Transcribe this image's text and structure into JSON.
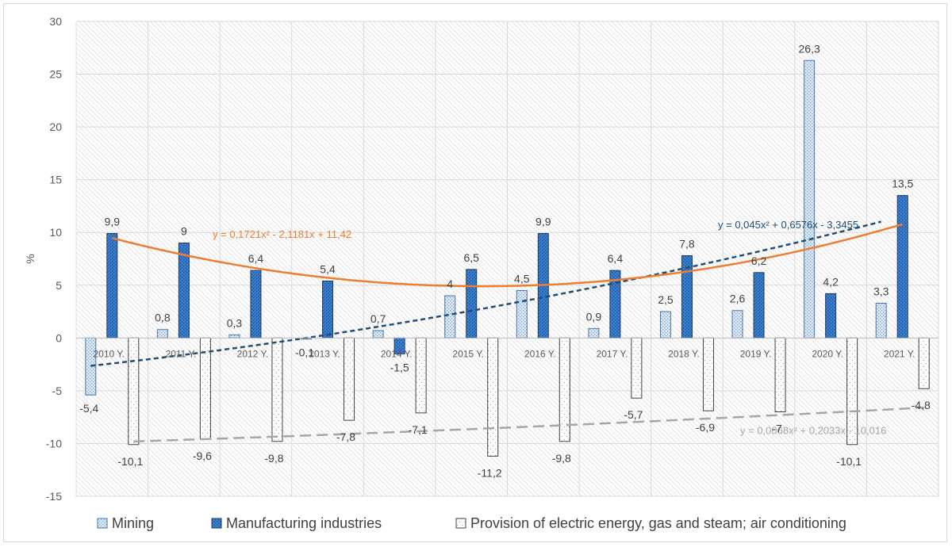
{
  "chart_data": {
    "type": "bar",
    "ylabel": "%",
    "ylim": [
      -15,
      30
    ],
    "yticks": [
      30,
      25,
      20,
      15,
      10,
      5,
      0,
      -5,
      -10,
      -15
    ],
    "grid": true,
    "legend_position": "bottom",
    "categories": [
      "2010 Y.",
      "2011 Y.",
      "2012 Y.",
      "2013 Y.",
      "2014 Y.",
      "2015 Y.",
      "2016 Y.",
      "2017 Y.",
      "2018 Y.",
      "2019 Y.",
      "2020 Y.",
      "2021 Y."
    ],
    "series": [
      {
        "name": "Mining",
        "values": [
          -5.4,
          0.8,
          0.3,
          -0.1,
          0.7,
          4,
          4.5,
          0.9,
          2.5,
          2.6,
          26.3,
          3.3
        ],
        "labels": [
          "-5,4",
          "0,8",
          "0,3",
          "-0,1",
          "0,7",
          "4",
          "4,5",
          "0,9",
          "2,5",
          "2,6",
          "26,3",
          "3,3"
        ],
        "color": "#cfe0f0"
      },
      {
        "name": "Manufacturing industries",
        "values": [
          9.9,
          9,
          6.4,
          5.4,
          -1.5,
          6.5,
          9.9,
          6.4,
          7.8,
          6.2,
          4.2,
          13.5
        ],
        "labels": [
          "9,9",
          "9",
          "6,4",
          "5,4",
          "-1,5",
          "6,5",
          "9,9",
          "6,4",
          "7,8",
          "6,2",
          "4,2",
          "13,5"
        ],
        "color": "#3d7ec9"
      },
      {
        "name": "Provision of electric energy, gas and steam; air conditioning",
        "values": [
          -10.1,
          -9.6,
          -9.8,
          -7.8,
          -7.1,
          -11.2,
          -9.8,
          -5.7,
          -6.9,
          -7,
          -10.1,
          -4.8
        ],
        "labels": [
          "-10,1",
          "-9,6",
          "-9,8",
          "-7,8",
          "-7,1",
          "-11,2",
          "-9,8",
          "-5,7",
          "-6,9",
          "-7",
          "-10,1",
          "-4,8"
        ],
        "color": "#ffffff"
      }
    ],
    "trendlines": [
      {
        "series": "Mining",
        "type": "polynomial",
        "coefficients": [
          0.045,
          0.6576,
          -3.3455
        ],
        "equation": "y = 0,045x² + 0,6576x - 3,3455",
        "color": "#1f4e79",
        "dash": "dashed"
      },
      {
        "series": "Manufacturing industries",
        "type": "polynomial",
        "coefficients": [
          0.1721,
          -2.1181,
          11.42
        ],
        "equation": "y = 0,1721x² - 2,1181x + 11,42",
        "color": "#ed7d31",
        "dash": "solid"
      },
      {
        "series": "Provision of electric energy, gas and steam; air conditioning",
        "type": "polynomial",
        "coefficients": [
          0.0068,
          0.2033,
          -10.016
        ],
        "equation": "y = 0,0068x² + 0,2033x - 10,016",
        "color": "#a6a6a6",
        "dash": "dashed"
      }
    ]
  }
}
